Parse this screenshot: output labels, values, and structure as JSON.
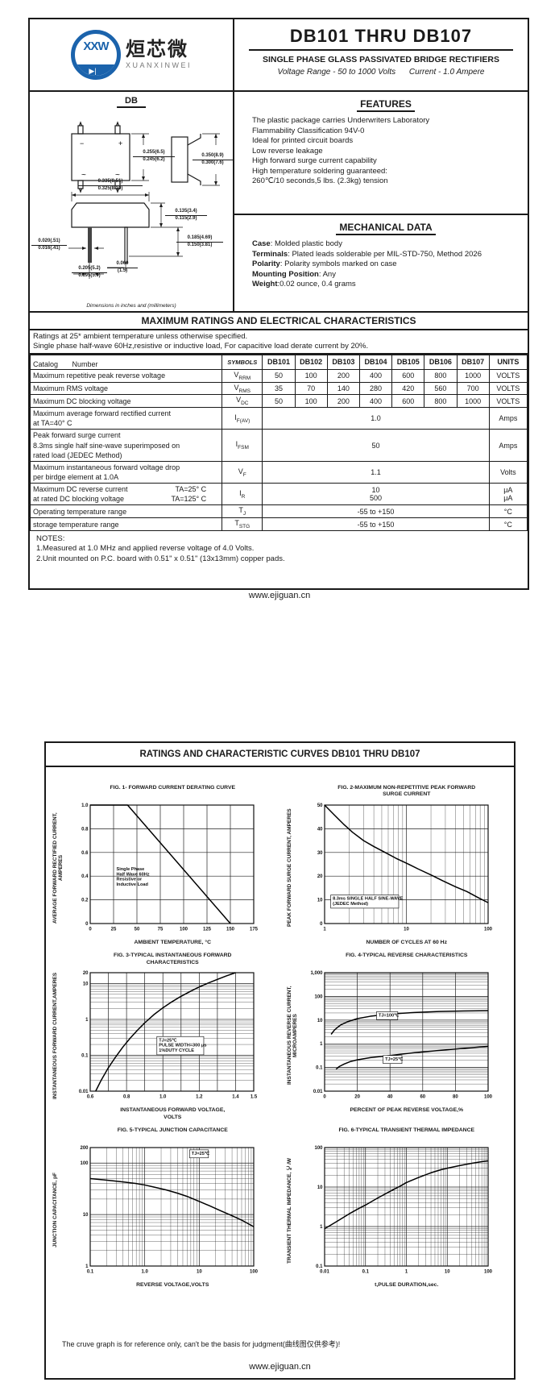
{
  "header": {
    "title": "DB101 THRU DB107",
    "subtitle": "SINGLE PHASE GLASS PASSIVATED BRIDGE RECTIFIERS",
    "range": "Voltage Range - 50 to 1000 Volts",
    "current": "Current -  1.0 Ampere"
  },
  "logo": {
    "xxw": "XXW",
    "diode": "▶|",
    "cn": "烜芯微",
    "en": "XUANXINWEI"
  },
  "package": {
    "name": "DB",
    "minus": "−",
    "plus": "+",
    "tilde1": "~",
    "tilde2": "~",
    "caption": "Dimensions in inches and (millimeters)",
    "dims": {
      "d1": {
        "t": "0.255(6.5)",
        "b": "0.245(6.2)"
      },
      "d2": {
        "t": "0.350(8.9)",
        "b": "0.300(7.6)"
      },
      "d3": {
        "t": "0.335(8.51)",
        "b": "0.325(8.10)"
      },
      "d4": {
        "t": "0.135(3.4)",
        "b": "0.115(2.9)"
      },
      "d5": {
        "t": "0.185(4.69)",
        "b": "0.150(3.81)"
      },
      "d6": {
        "t": "0.020(.51)",
        "b": "0.016(.41)"
      },
      "d7": {
        "t": "0.205(5.2)",
        "b": "0.195(5.0)"
      },
      "d8": {
        "t": "0.060",
        "b": "(1.5)"
      }
    }
  },
  "features": {
    "heading": "FEATURES",
    "lines": [
      "The plastic package carries Underwriters Laboratory",
      "Flammability Classification 94V-0",
      "Ideal for printed circuit boards",
      "Low reverse leakage",
      "High forward surge current capability",
      "High temperature soldering guaranteed:",
      "260℃/10 seconds,5 lbs. (2.3kg) tension"
    ]
  },
  "mechanical": {
    "heading": "MECHANICAL DATA",
    "items": [
      {
        "k": "Case",
        "v": ": Molded plastic body"
      },
      {
        "k": "Terminals",
        "v": ": Plated leads solderable per MIL-STD-750, Method 2026"
      },
      {
        "k": "Polarity",
        "v": ": Polarity symbols marked on case"
      },
      {
        "k": "Mounting Position",
        "v": ": Any"
      },
      {
        "k": "Weight",
        "v": ":0.02 ounce, 0.4 grams"
      }
    ]
  },
  "ratings": {
    "banner": "MAXIMUM RATINGS AND ELECTRICAL CHARACTERISTICS",
    "intro1": "Ratings at 25* ambient temperature unless otherwise specified.",
    "intro2": "Single phase half-wave 60Hz,resistive or inductive load, For capacitive load derate current by 20%.",
    "col_catalog": "Catalog       Number",
    "col_symbols": "SYMBOLS",
    "models": [
      "DB101",
      "DB102",
      "DB103",
      "DB104",
      "DB105",
      "DB106",
      "DB107"
    ],
    "col_units": "UNITS",
    "rows": [
      {
        "label": "Maximum repetitive peak reverse voltage",
        "sym": "V",
        "sub": "RRM",
        "vals": [
          "50",
          "100",
          "200",
          "400",
          "600",
          "800",
          "1000"
        ],
        "unit": "VOLTS"
      },
      {
        "label": "Maximum RMS voltage",
        "sym": "V",
        "sub": "RMS",
        "vals": [
          "35",
          "70",
          "140",
          "280",
          "420",
          "560",
          "700"
        ],
        "unit": "VOLTS"
      },
      {
        "label": "Maximum DC blocking voltage",
        "sym": "V",
        "sub": "DC",
        "vals": [
          "50",
          "100",
          "200",
          "400",
          "600",
          "800",
          "1000"
        ],
        "unit": "VOLTS"
      },
      {
        "label": "Maximum average forward rectified current",
        "label2": "at TA=40° C",
        "sym": "I",
        "sub": "F(AV)",
        "merged": "1.0",
        "unit": "Amps"
      },
      {
        "label": "Peak forward surge current",
        "label2": "8.3ms single half sine-wave superimposed on",
        "label3": "rated load (JEDEC Method)",
        "sym": "I",
        "sub": "FSM",
        "merged": "50",
        "unit": "Amps"
      },
      {
        "label": "Maximum instantaneous forward voltage drop",
        "label2": "per birdge element at 1.0A",
        "sym": "V",
        "sub": "F",
        "merged": "1.1",
        "unit": "Volts"
      },
      {
        "label": "Maximum DC reverse current",
        "cond": "TA=25° C",
        "label2": "at rated DC blocking voltage",
        "cond2": "TA=125° C",
        "sym": "I",
        "sub": "R",
        "merged": "10",
        "merged2": "500",
        "unit": "μA",
        "unit2": "μA"
      },
      {
        "label": "Operating temperature range",
        "sym": "T",
        "sub": "J",
        "merged": "-55 to +150",
        "unit": "°C"
      },
      {
        "label": "storage temperature range",
        "sym": "T",
        "sub": "STG",
        "merged": "-55 to +150",
        "unit": "°C"
      }
    ],
    "notes_title": "NOTES:",
    "note1": "1.Measured at 1.0 MHz and applied reverse voltage of 4.0 Volts.",
    "note2": "2.Unit mounted on P.C. board with 0.51\"  x 0.51\"  (13x13mm) copper pads."
  },
  "site": "www.ejiguan.cn",
  "page2": {
    "banner": "RATINGS AND CHARACTERISTIC CURVES DB101 THRU DB107",
    "note": "The cruve graph is for reference only, can't be the basis for judgment(曲线图仅供参考)!"
  },
  "chart_data": [
    {
      "type": "line",
      "title": "FIG. 1- FORWARD CURRENT DERATING CURVE",
      "xlabel": "AMBIENT TEMPERATURE, °C",
      "ylabel": "AVERAGE FORWARD RECTIFIED CURRENT, AMPERES",
      "x": {
        "scale": "linear",
        "min": 0,
        "max": 175,
        "ticks": [
          [
            0,
            "0"
          ],
          [
            25,
            "25"
          ],
          [
            50,
            "50"
          ],
          [
            75,
            "75"
          ],
          [
            100,
            "100"
          ],
          [
            125,
            "125"
          ],
          [
            150,
            "150"
          ],
          [
            175,
            "175"
          ]
        ]
      },
      "y": {
        "scale": "linear",
        "min": 0,
        "max": 1.0,
        "ticks": [
          [
            0,
            "0"
          ],
          [
            0.2,
            "0.2"
          ],
          [
            0.4,
            "0.4"
          ],
          [
            0.6,
            "0.6"
          ],
          [
            0.8,
            "0.8"
          ],
          [
            1.0,
            "1.0"
          ]
        ]
      },
      "series": [
        {
          "name": "derating",
          "points": [
            [
              0,
              1
            ],
            [
              40,
              1
            ],
            [
              150,
              0
            ]
          ]
        }
      ],
      "annotations": [
        {
          "lines": [
            "Single Phase",
            "Half Wave 60Hz",
            "Resistive or",
            "Inductive Load"
          ],
          "ax": 0.16,
          "ay": 0.55,
          "boxed": false
        }
      ]
    },
    {
      "type": "line",
      "title": "FIG. 2-MAXIMUM NON-REPETITIVE PEAK FORWARD\nSURGE CURRENT",
      "xlabel": "NUMBER OF CYCLES AT 60 Hz",
      "ylabel": "PEAK  FORWARD SURGE CURRENT, AMPERES",
      "x": {
        "scale": "log",
        "min": 1,
        "max": 100,
        "ticks": [
          [
            1,
            "1"
          ],
          [
            10,
            "10"
          ],
          [
            100,
            "100"
          ]
        ]
      },
      "y": {
        "scale": "linear",
        "min": 0,
        "max": 50,
        "ticks": [
          [
            0,
            "0"
          ],
          [
            10,
            "10"
          ],
          [
            20,
            "20"
          ],
          [
            30,
            "30"
          ],
          [
            40,
            "40"
          ],
          [
            50,
            "50"
          ]
        ]
      },
      "series": [
        {
          "name": "surge",
          "points": [
            [
              1,
              50
            ],
            [
              1.3,
              46
            ],
            [
              1.7,
              42
            ],
            [
              2.2,
              38.5
            ],
            [
              3,
              35
            ],
            [
              4,
              32.5
            ],
            [
              5.5,
              30
            ],
            [
              7.5,
              27.5
            ],
            [
              10,
              25.5
            ],
            [
              14,
              23
            ],
            [
              20,
              20.5
            ],
            [
              28,
              18
            ],
            [
              40,
              15.5
            ],
            [
              55,
              13.5
            ],
            [
              75,
              11
            ],
            [
              100,
              8.8
            ]
          ]
        }
      ],
      "annotations": [
        {
          "lines": [
            "8.3ms SINGLE HALF SINE-WAVE",
            "(JEDEC Method)"
          ],
          "ax": 0.05,
          "ay": 0.8,
          "boxed": true
        }
      ]
    },
    {
      "type": "line",
      "title": "FIG. 3-TYPICAL INSTANTANEOUS FORWARD\nCHARACTERISTICS",
      "xlabel": "INSTANTANEOUS FORWARD VOLTAGE,\nVOLTS",
      "ylabel": "INSTANTANEOUS FORWARD CURRENT,AMPERES",
      "x": {
        "scale": "linear",
        "min": 0.6,
        "max": 1.5,
        "ticks": [
          [
            0.6,
            "0.6"
          ],
          [
            0.8,
            "0.8"
          ],
          [
            1.0,
            "1.0"
          ],
          [
            1.2,
            "1.2"
          ],
          [
            1.4,
            "1.4"
          ],
          [
            1.5,
            "1.5"
          ]
        ],
        "grid": [
          0.6,
          0.7,
          0.8,
          0.9,
          1.0,
          1.1,
          1.2,
          1.3,
          1.4,
          1.5
        ]
      },
      "y": {
        "scale": "log",
        "min": 0.01,
        "max": 20,
        "ticks": [
          [
            0.01,
            "0.01"
          ],
          [
            0.1,
            "0.1"
          ],
          [
            1,
            "1"
          ],
          [
            10,
            "10"
          ],
          [
            20,
            "20"
          ]
        ]
      },
      "series": [
        {
          "name": "forward",
          "points": [
            [
              0.63,
              0.01
            ],
            [
              0.66,
              0.02
            ],
            [
              0.7,
              0.045
            ],
            [
              0.74,
              0.09
            ],
            [
              0.78,
              0.17
            ],
            [
              0.82,
              0.3
            ],
            [
              0.86,
              0.5
            ],
            [
              0.9,
              0.8
            ],
            [
              0.95,
              1.35
            ],
            [
              1.0,
              2.1
            ],
            [
              1.05,
              3.1
            ],
            [
              1.1,
              4.4
            ],
            [
              1.15,
              6.0
            ],
            [
              1.2,
              8.0
            ],
            [
              1.25,
              10.3
            ],
            [
              1.3,
              13
            ],
            [
              1.35,
              16.3
            ],
            [
              1.4,
              20
            ]
          ]
        }
      ],
      "annotations": [
        {
          "lines": [
            "TJ=25℃",
            "PULSE WIDTH=300 μs",
            "1%DUTY CYCLE"
          ],
          "ax": 0.42,
          "ay": 0.58,
          "boxed": true
        }
      ]
    },
    {
      "type": "line",
      "title": "FIG. 4-TYPICAL REVERSE CHARACTERISTICS",
      "xlabel": "PERCENT OF PEAK REVERSE VOLTAGE,%",
      "ylabel": "INSTANTANEOUS REVERSE CURRENT, MICROAMPERES",
      "x": {
        "scale": "linear",
        "min": 0,
        "max": 100,
        "ticks": [
          [
            0,
            "0"
          ],
          [
            20,
            "20"
          ],
          [
            40,
            "40"
          ],
          [
            60,
            "60"
          ],
          [
            80,
            "80"
          ],
          [
            100,
            "100"
          ]
        ]
      },
      "y": {
        "scale": "log",
        "min": 0.01,
        "max": 1000,
        "ticks": [
          [
            0.01,
            "0.01"
          ],
          [
            0.1,
            "0.1"
          ],
          [
            1,
            "1"
          ],
          [
            10,
            "10"
          ],
          [
            100,
            "100"
          ],
          [
            1000,
            "1,000"
          ]
        ]
      },
      "series": [
        {
          "name": "TJ=100℃",
          "points": [
            [
              4,
              2.5
            ],
            [
              6,
              3.8
            ],
            [
              8,
              5
            ],
            [
              10,
              6.3
            ],
            [
              14,
              8.5
            ],
            [
              20,
              11.5
            ],
            [
              28,
              14.5
            ],
            [
              40,
              18
            ],
            [
              55,
              21
            ],
            [
              70,
              23
            ],
            [
              85,
              24.3
            ],
            [
              100,
              25
            ]
          ]
        },
        {
          "name": "TJ=25℃",
          "points": [
            [
              7,
              0.085
            ],
            [
              9,
              0.11
            ],
            [
              12,
              0.14
            ],
            [
              16,
              0.18
            ],
            [
              20,
              0.21
            ],
            [
              28,
              0.26
            ],
            [
              40,
              0.32
            ],
            [
              55,
              0.42
            ],
            [
              70,
              0.52
            ],
            [
              85,
              0.64
            ],
            [
              100,
              0.78
            ]
          ]
        }
      ],
      "annotations": [
        {
          "lines": [
            "TJ=100℃"
          ],
          "ax": 0.33,
          "ay": 0.37,
          "boxed": true
        },
        {
          "lines": [
            "TJ=25℃"
          ],
          "ax": 0.37,
          "ay": 0.74,
          "boxed": true
        }
      ]
    },
    {
      "type": "line",
      "title": "FIG. 5-TYPICAL JUNCTION CAPACITANCE",
      "xlabel": "REVERSE VOLTAGE,VOLTS",
      "ylabel": "JUNCTION CAPACITANCE, pF",
      "x": {
        "scale": "log",
        "min": 0.1,
        "max": 100,
        "ticks": [
          [
            0.1,
            "0.1"
          ],
          [
            1,
            "1.0"
          ],
          [
            10,
            "10"
          ],
          [
            100,
            "100"
          ]
        ]
      },
      "y": {
        "scale": "log",
        "min": 1,
        "max": 200,
        "ticks": [
          [
            1,
            "1"
          ],
          [
            10,
            "10"
          ],
          [
            100,
            "100"
          ],
          [
            200,
            "200"
          ]
        ]
      },
      "series": [
        {
          "name": "capacitance",
          "points": [
            [
              0.1,
              50
            ],
            [
              0.15,
              48
            ],
            [
              0.25,
              45.5
            ],
            [
              0.4,
              43
            ],
            [
              0.7,
              40
            ],
            [
              1,
              37.5
            ],
            [
              1.5,
              34
            ],
            [
              2.5,
              30
            ],
            [
              4,
              26
            ],
            [
              6,
              22.5
            ],
            [
              10,
              18
            ],
            [
              15,
              15
            ],
            [
              25,
              11.8
            ],
            [
              40,
              9.5
            ],
            [
              60,
              7.8
            ],
            [
              100,
              5.8
            ]
          ]
        }
      ],
      "annotations": [
        {
          "lines": [
            "TJ=25℃"
          ],
          "ax": 0.62,
          "ay": 0.06,
          "boxed": true
        }
      ]
    },
    {
      "type": "line",
      "title": "FIG. 6-TYPICAL TRANSIENT THERMAL IMPEDANCE",
      "xlabel": "t,PULSE DURATION,sec.",
      "ylabel": "TRANSIENT THERMAL IMPEDANCE, ℃/W",
      "x": {
        "scale": "log",
        "min": 0.01,
        "max": 100,
        "ticks": [
          [
            0.01,
            "0.01"
          ],
          [
            0.1,
            "0.1"
          ],
          [
            1,
            "1"
          ],
          [
            10,
            "10"
          ],
          [
            100,
            "100"
          ]
        ]
      },
      "y": {
        "scale": "log",
        "min": 0.1,
        "max": 100,
        "ticks": [
          [
            0.1,
            "0.1"
          ],
          [
            1,
            "1"
          ],
          [
            10,
            "10"
          ],
          [
            100,
            "100"
          ]
        ]
      },
      "series": [
        {
          "name": "thermal",
          "points": [
            [
              0.01,
              0.88
            ],
            [
              0.02,
              1.35
            ],
            [
              0.04,
              2.1
            ],
            [
              0.07,
              2.9
            ],
            [
              0.1,
              3.5
            ],
            [
              0.2,
              5.3
            ],
            [
              0.4,
              7.8
            ],
            [
              0.7,
              10.5
            ],
            [
              1,
              13
            ],
            [
              2,
              17.5
            ],
            [
              4,
              23
            ],
            [
              7,
              27.5
            ],
            [
              10,
              30
            ],
            [
              20,
              35
            ],
            [
              40,
              40
            ],
            [
              70,
              44
            ],
            [
              100,
              46
            ]
          ]
        }
      ],
      "annotations": []
    }
  ]
}
